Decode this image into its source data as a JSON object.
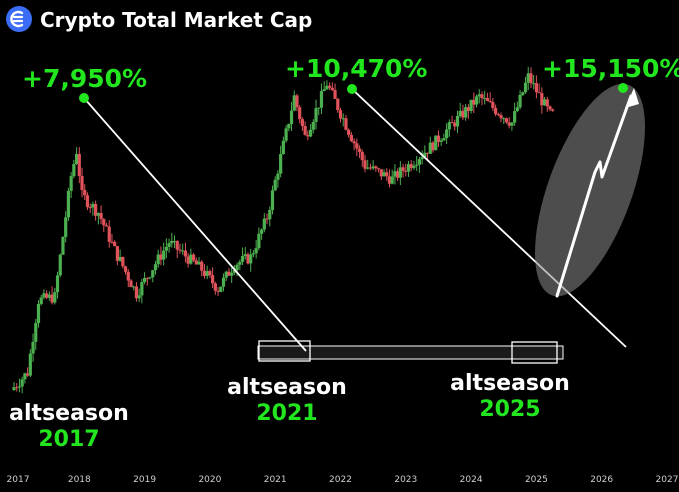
{
  "header": {
    "title": "Crypto Total Market Cap",
    "logo_color": "#3b6cf6"
  },
  "colors": {
    "background": "#000000",
    "up": "#4caf50",
    "down": "#e0535b",
    "annotation_green": "#22e61e",
    "line": "#ffffff",
    "axis_text": "#cfcfcf"
  },
  "chart_data": {
    "type": "candlestick",
    "title": "Crypto Total Market Cap",
    "x_axis": {
      "type": "time",
      "tick_labels": [
        "2017",
        "2018",
        "2019",
        "2020",
        "2021",
        "2022",
        "2023",
        "2024",
        "2025",
        "2026",
        "2027"
      ],
      "range": [
        "2017-01",
        "2027-01"
      ]
    },
    "y_axis": {
      "scale": "log",
      "visible": false,
      "relative_range": [
        1,
        100
      ]
    },
    "grid": false,
    "candle_period": "~2 weeks",
    "series_shape": [
      {
        "date": "2017-01",
        "value": 1.0
      },
      {
        "date": "2017-04",
        "value": 1.3
      },
      {
        "date": "2017-06",
        "value": 3.8
      },
      {
        "date": "2017-09",
        "value": 4.0
      },
      {
        "date": "2017-12",
        "value": 24
      },
      {
        "date": "2018-01",
        "value": 35
      },
      {
        "date": "2018-02",
        "value": 18
      },
      {
        "date": "2018-05",
        "value": 14
      },
      {
        "date": "2018-08",
        "value": 8
      },
      {
        "date": "2018-12",
        "value": 4.2
      },
      {
        "date": "2019-06",
        "value": 9
      },
      {
        "date": "2019-12",
        "value": 6
      },
      {
        "date": "2020-03",
        "value": 4.5
      },
      {
        "date": "2020-06",
        "value": 6.5
      },
      {
        "date": "2020-09",
        "value": 7.2
      },
      {
        "date": "2020-12",
        "value": 13
      },
      {
        "date": "2021-05",
        "value": 78
      },
      {
        "date": "2021-07",
        "value": 43
      },
      {
        "date": "2021-11",
        "value": 95
      },
      {
        "date": "2022-06",
        "value": 28
      },
      {
        "date": "2022-11",
        "value": 23
      },
      {
        "date": "2023-06",
        "value": 37
      },
      {
        "date": "2024-03",
        "value": 78
      },
      {
        "date": "2024-09",
        "value": 53
      },
      {
        "date": "2024-12",
        "value": 105
      },
      {
        "date": "2025-04",
        "value": 60
      }
    ],
    "annotations": [
      {
        "label": "+7,950%",
        "date": "2018-01"
      },
      {
        "label": "+10,470%",
        "date": "2021-11"
      },
      {
        "label": "+15,150%",
        "date": "2026-06"
      },
      {
        "label_top": "altseason",
        "label_bottom": "2017"
      },
      {
        "label_top": "altseason",
        "label_bottom": "2021"
      },
      {
        "label_top": "altseason",
        "label_bottom": "2025"
      }
    ],
    "trendlines": [
      {
        "from": "2018-01",
        "to": "2021-01"
      },
      {
        "from": "2021-11",
        "to": "2026-06"
      }
    ],
    "support_zone": {
      "from": "2020-11",
      "to": "2025-05"
    },
    "projection": {
      "from": "2025-04",
      "to": "2026-06",
      "shape": "zigzag-up"
    }
  }
}
